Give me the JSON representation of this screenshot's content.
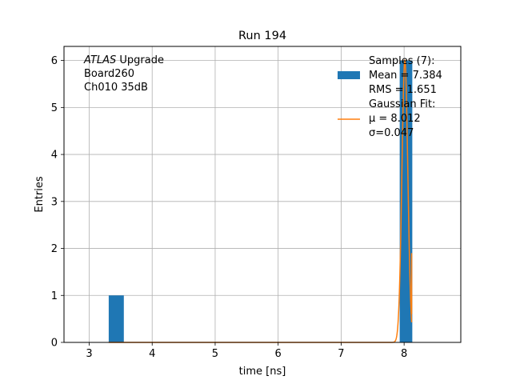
{
  "chart_data": {
    "type": "bar",
    "title": "Run 194",
    "xlabel": "time [ns]",
    "ylabel": "Entries",
    "xlim": [
      2.6,
      8.9
    ],
    "ylim": [
      0,
      6.3
    ],
    "grid": true,
    "x_ticks": [
      3,
      4,
      5,
      6,
      7,
      8
    ],
    "y_ticks": [
      0,
      1,
      2,
      3,
      4,
      5,
      6
    ],
    "histogram": {
      "name": "Samples (7):",
      "color": "#1f77b4",
      "bins": [
        {
          "left": 3.31,
          "right": 3.55,
          "count": 1
        },
        {
          "left": 7.93,
          "right": 8.13,
          "count": 6
        }
      ]
    },
    "fit": {
      "name": "Gaussian Fit:",
      "color": "#ff7f0e",
      "mu": 8.012,
      "sigma": 0.047,
      "amplitude": 6.0,
      "x_start": 3.31,
      "x_end": 8.12
    },
    "legend": {
      "position": "top-right",
      "entries": [
        {
          "lines": [
            "Samples (7):",
            " Mean = 7.384",
            " RMS = 1.651"
          ]
        },
        {
          "lines": [
            "Gaussian Fit:",
            " μ = 8.012",
            " σ=0.047"
          ]
        }
      ]
    },
    "annotation": {
      "position": "top-left",
      "lines": [
        {
          "italic": "ATLAS",
          "rest": " Upgrade"
        },
        {
          "italic": "",
          "rest": " Board260"
        },
        {
          "italic": "",
          "rest": " Ch010 35dB"
        }
      ]
    }
  }
}
